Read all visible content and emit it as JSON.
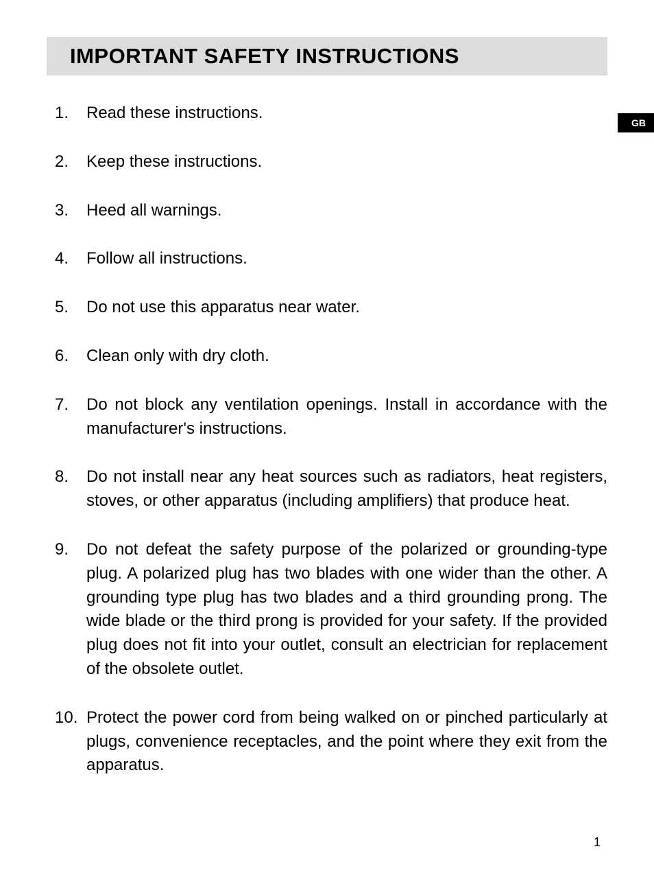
{
  "title": "IMPORTANT SAFETY INSTRUCTIONS",
  "language_tab": "GB",
  "page_number": "1",
  "instructions": [
    "Read these instructions.",
    "Keep these instructions.",
    "Heed all warnings.",
    "Follow all instructions.",
    "Do not use this apparatus near water.",
    "Clean only with dry cloth.",
    "Do not block any ventilation openings. Install in accordance with the manufacturer's instructions.",
    "Do not install near any heat sources such as radiators, heat registers, stoves, or other apparatus (including amplifiers) that produce heat.",
    "Do not defeat the safety purpose of the polarized or grounding-type plug. A polarized plug has two blades with one wider than the other. A grounding type plug has two blades and a third grounding prong. The wide blade or the third prong is provided for your safety. If the provided plug does not fit into your outlet, consult an electrician for replacement of the obsolete outlet.",
    "Protect the power cord from being walked on or pinched particularly at plugs, convenience receptacles, and the point where they exit from the apparatus."
  ],
  "colors": {
    "page_bg": "#ffffff",
    "title_bar_bg": "#dcdcdc",
    "text": "#000000",
    "tab_bg": "#000000",
    "tab_text": "#ffffff"
  },
  "typography": {
    "title_fontsize": 31,
    "body_fontsize": 24,
    "tab_fontsize": 14,
    "pagenum_fontsize": 18,
    "font_family": "Arial"
  }
}
